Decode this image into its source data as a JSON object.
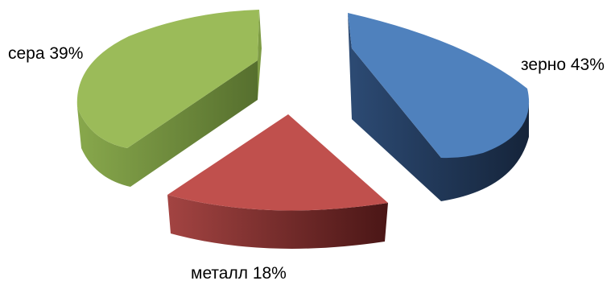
{
  "chart_data": {
    "type": "pie",
    "style": "exploded-3d",
    "title": "",
    "legend": "none",
    "slices": [
      {
        "label": "зерно",
        "value": 43,
        "display": "зерно 43%",
        "color": "#4f81bd",
        "side_color": "#1f3350"
      },
      {
        "label": "металл",
        "value": 18,
        "display": "металл 18%",
        "color": "#c0504d",
        "side_color": "#5a1e1e"
      },
      {
        "label": "сера",
        "value": 39,
        "display": "сера 39%",
        "color": "#9bbb59",
        "side_color": "#5f7a34"
      }
    ]
  }
}
